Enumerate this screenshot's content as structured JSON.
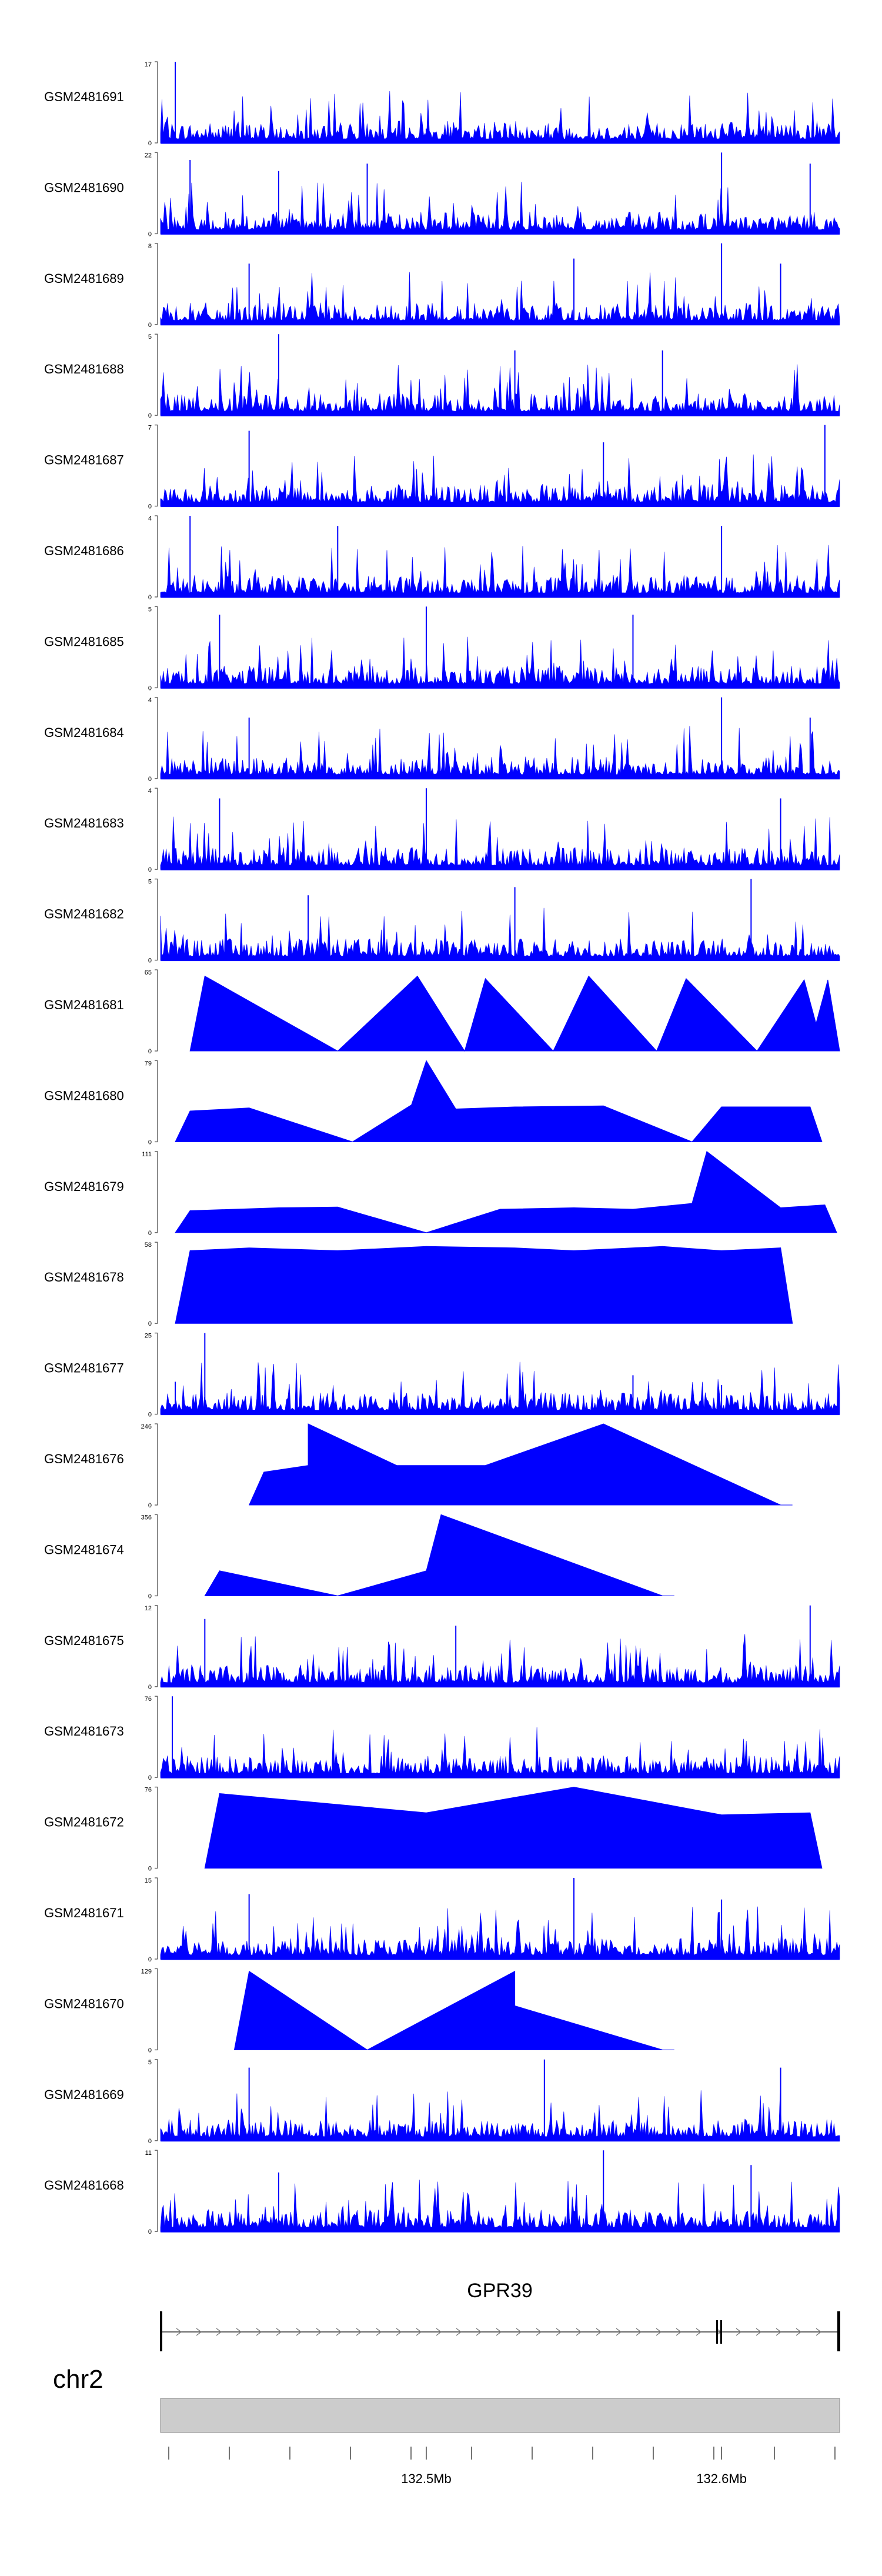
{
  "chart_data": {
    "type": "area",
    "title": "",
    "chromosome": "chr2",
    "gene": "GPR39",
    "x_unit": "Mb",
    "xlim": [
      132.41,
      132.64
    ],
    "x_ticks": [
      {
        "value": 132.5,
        "label": "132.5Mb"
      },
      {
        "value": 132.6,
        "label": "132.6Mb"
      }
    ],
    "gene_model": {
      "start": 132.41,
      "end": 132.64,
      "strand": "+"
    },
    "grid": false,
    "colors": {
      "signal": "#0000ff",
      "ideogram": "#cccccc",
      "gene": "#000000"
    },
    "tracks": [
      {
        "name": "GSM2481691",
        "ylim": [
          0,
          17
        ],
        "style": "dense",
        "peaks": [
          [
            132.415,
            17
          ],
          [
            132.44,
            3.5
          ],
          [
            132.5,
            3
          ],
          [
            132.59,
            3
          ]
        ]
      },
      {
        "name": "GSM2481690",
        "ylim": [
          0,
          22
        ],
        "style": "dense",
        "peaks": [
          [
            132.42,
            20
          ],
          [
            132.45,
            17
          ],
          [
            132.48,
            19
          ],
          [
            132.6,
            22
          ],
          [
            132.63,
            19
          ]
        ]
      },
      {
        "name": "GSM2481689",
        "ylim": [
          0,
          8
        ],
        "style": "dense",
        "peaks": [
          [
            132.44,
            6
          ],
          [
            132.55,
            6.5
          ],
          [
            132.6,
            8
          ],
          [
            132.62,
            6
          ]
        ]
      },
      {
        "name": "GSM2481688",
        "ylim": [
          0,
          5
        ],
        "style": "dense",
        "peaks": [
          [
            132.45,
            5
          ],
          [
            132.53,
            4
          ],
          [
            132.58,
            4
          ]
        ]
      },
      {
        "name": "GSM2481687",
        "ylim": [
          0,
          7
        ],
        "style": "dense",
        "peaks": [
          [
            132.44,
            6.5
          ],
          [
            132.56,
            5.5
          ],
          [
            132.635,
            7
          ]
        ]
      },
      {
        "name": "GSM2481686",
        "ylim": [
          0,
          4
        ],
        "style": "dense",
        "peaks": [
          [
            132.42,
            4
          ],
          [
            132.47,
            3.5
          ],
          [
            132.6,
            3.5
          ]
        ]
      },
      {
        "name": "GSM2481685",
        "ylim": [
          0,
          5
        ],
        "style": "dense",
        "peaks": [
          [
            132.43,
            4.5
          ],
          [
            132.5,
            5
          ],
          [
            132.57,
            4.5
          ]
        ]
      },
      {
        "name": "GSM2481684",
        "ylim": [
          0,
          4
        ],
        "style": "dense",
        "peaks": [
          [
            132.44,
            3
          ],
          [
            132.6,
            4
          ],
          [
            132.63,
            3
          ]
        ]
      },
      {
        "name": "GSM2481683",
        "ylim": [
          0,
          4
        ],
        "style": "dense",
        "peaks": [
          [
            132.43,
            3.5
          ],
          [
            132.5,
            4
          ],
          [
            132.62,
            3.5
          ]
        ]
      },
      {
        "name": "GSM2481682",
        "ylim": [
          0,
          5
        ],
        "style": "dense",
        "peaks": [
          [
            132.46,
            4
          ],
          [
            132.53,
            4.5
          ],
          [
            132.61,
            5
          ]
        ]
      },
      {
        "name": "GSM2481681",
        "ylim": [
          0,
          65
        ],
        "style": "triangles",
        "peaks": [
          [
            132.425,
            60
          ],
          [
            132.47,
            0
          ],
          [
            132.497,
            60
          ],
          [
            132.513,
            0
          ],
          [
            132.52,
            58
          ],
          [
            132.543,
            0
          ],
          [
            132.555,
            60
          ],
          [
            132.578,
            0
          ],
          [
            132.588,
            58
          ],
          [
            132.612,
            0
          ],
          [
            132.628,
            57
          ],
          [
            132.632,
            22
          ],
          [
            132.636,
            57
          ]
        ]
      },
      {
        "name": "GSM2481680",
        "ylim": [
          0,
          79
        ],
        "style": "triangles",
        "peaks": [
          [
            132.42,
            30
          ],
          [
            132.44,
            33
          ],
          [
            132.475,
            0
          ],
          [
            132.495,
            36
          ],
          [
            132.5,
            79
          ],
          [
            132.51,
            32
          ],
          [
            132.53,
            34
          ],
          [
            132.56,
            35
          ],
          [
            132.59,
            0
          ],
          [
            132.6,
            34
          ],
          [
            132.62,
            34
          ],
          [
            132.63,
            34
          ]
        ]
      },
      {
        "name": "GSM2481679",
        "ylim": [
          0,
          111
        ],
        "style": "triangles",
        "peaks": [
          [
            132.42,
            30
          ],
          [
            132.45,
            34
          ],
          [
            132.47,
            35
          ],
          [
            132.5,
            0
          ],
          [
            132.525,
            32
          ],
          [
            132.55,
            34
          ],
          [
            132.57,
            32
          ],
          [
            132.59,
            40
          ],
          [
            132.595,
            111
          ],
          [
            132.62,
            34
          ],
          [
            132.635,
            38
          ]
        ]
      },
      {
        "name": "GSM2481678",
        "ylim": [
          0,
          58
        ],
        "style": "triangles",
        "peaks": [
          [
            132.42,
            52
          ],
          [
            132.44,
            54
          ],
          [
            132.47,
            52
          ],
          [
            132.5,
            55
          ],
          [
            132.53,
            54
          ],
          [
            132.55,
            52
          ],
          [
            132.58,
            55
          ],
          [
            132.6,
            52
          ],
          [
            132.62,
            54
          ]
        ]
      },
      {
        "name": "GSM2481677",
        "ylim": [
          0,
          25
        ],
        "style": "dense",
        "peaks": [
          [
            132.415,
            10
          ],
          [
            132.425,
            25
          ],
          [
            132.57,
            12
          ],
          [
            132.6,
            9
          ]
        ]
      },
      {
        "name": "GSM2481676",
        "ylim": [
          0,
          246
        ],
        "style": "triangles",
        "peaks": [
          [
            132.445,
            100
          ],
          [
            132.46,
            120
          ],
          [
            132.46,
            246
          ],
          [
            132.49,
            120
          ],
          [
            132.52,
            120
          ],
          [
            132.56,
            246
          ],
          [
            132.62,
            0
          ]
        ]
      },
      {
        "name": "GSM2481674",
        "ylim": [
          0,
          356
        ],
        "style": "triangles",
        "peaks": [
          [
            132.43,
            110
          ],
          [
            132.47,
            0
          ],
          [
            132.5,
            110
          ],
          [
            132.505,
            356
          ],
          [
            132.58,
            0
          ]
        ]
      },
      {
        "name": "GSM2481675",
        "ylim": [
          0,
          12
        ],
        "style": "dense",
        "peaks": [
          [
            132.425,
            10
          ],
          [
            132.51,
            9
          ],
          [
            132.63,
            12
          ]
        ]
      },
      {
        "name": "GSM2481673",
        "ylim": [
          0,
          76
        ],
        "style": "dense",
        "peaks": [
          [
            132.414,
            76
          ],
          [
            132.56,
            12
          ]
        ]
      },
      {
        "name": "GSM2481672",
        "ylim": [
          0,
          76
        ],
        "style": "triangles",
        "peaks": [
          [
            132.43,
            70
          ],
          [
            132.5,
            52
          ],
          [
            132.55,
            76
          ],
          [
            132.6,
            50
          ],
          [
            132.63,
            52
          ]
        ]
      },
      {
        "name": "GSM2481671",
        "ylim": [
          0,
          15
        ],
        "style": "dense",
        "peaks": [
          [
            132.44,
            12
          ],
          [
            132.55,
            15
          ],
          [
            132.6,
            11
          ]
        ]
      },
      {
        "name": "GSM2481670",
        "ylim": [
          0,
          129
        ],
        "style": "triangles",
        "peaks": [
          [
            132.44,
            125
          ],
          [
            132.48,
            0
          ],
          [
            132.53,
            125
          ],
          [
            132.53,
            70
          ],
          [
            132.58,
            0
          ]
        ]
      },
      {
        "name": "GSM2481669",
        "ylim": [
          0,
          5
        ],
        "style": "dense",
        "peaks": [
          [
            132.44,
            4.5
          ],
          [
            132.54,
            5
          ],
          [
            132.62,
            4.5
          ]
        ]
      },
      {
        "name": "GSM2481668",
        "ylim": [
          0,
          11
        ],
        "style": "dense",
        "peaks": [
          [
            132.45,
            8
          ],
          [
            132.56,
            11
          ],
          [
            132.61,
            9
          ]
        ]
      }
    ]
  }
}
